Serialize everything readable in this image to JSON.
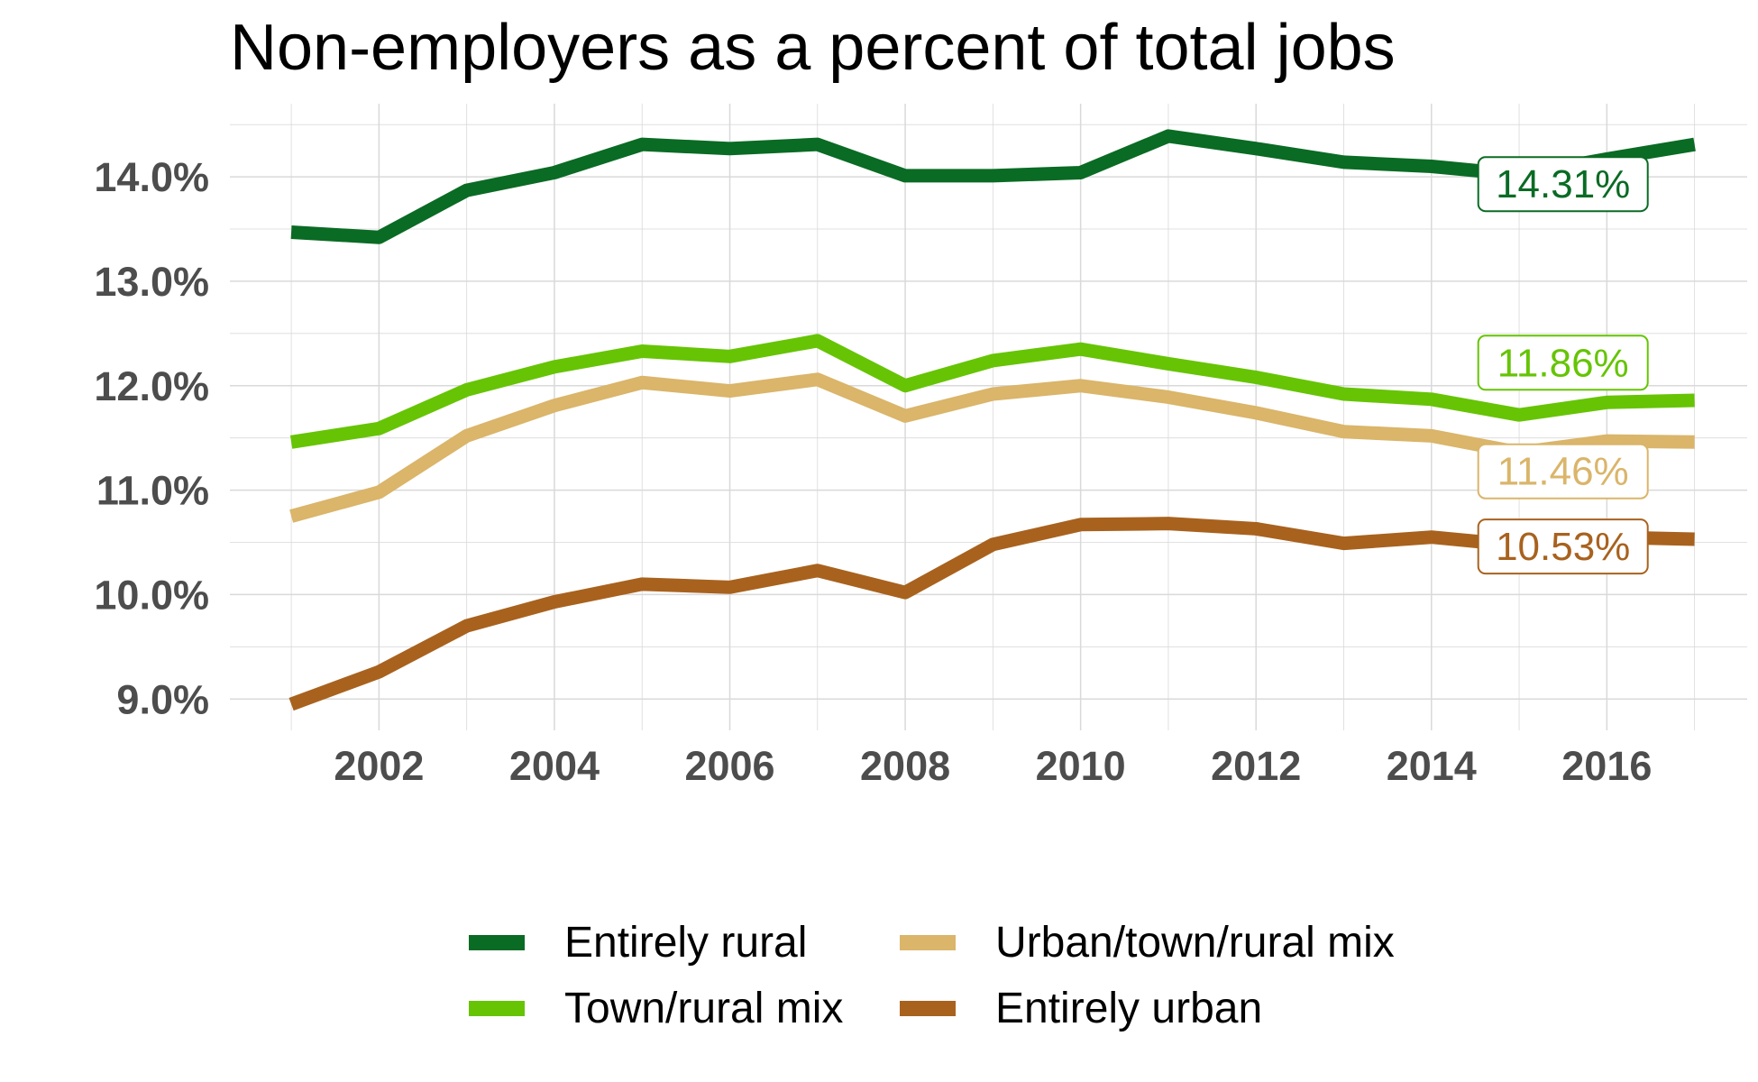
{
  "title": "Non-employers as a percent of total jobs",
  "colors": {
    "entirely_rural": "#0a6b24",
    "town_rural_mix": "#66c404",
    "urban_town_rural_mix": "#dab56a",
    "entirely_urban": "#a8621e",
    "grid": "#d9d9d9",
    "axis_text": "#4d4d4d"
  },
  "legend": {
    "items": [
      {
        "label": "Entirely rural",
        "color": "#0a6b24"
      },
      {
        "label": "Urban/town/rural mix",
        "color": "#dab56a"
      },
      {
        "label": "Town/rural mix",
        "color": "#66c404"
      },
      {
        "label": "Entirely urban",
        "color": "#a8621e"
      }
    ]
  },
  "chart_data": {
    "type": "line",
    "title": "Non-employers as a percent of total jobs",
    "xlabel": "",
    "ylabel": "",
    "x": [
      2001,
      2002,
      2003,
      2004,
      2005,
      2006,
      2007,
      2008,
      2009,
      2010,
      2011,
      2012,
      2013,
      2014,
      2015,
      2016,
      2017
    ],
    "xlim": [
      2000.3,
      2017.6
    ],
    "ylim": [
      8.7,
      14.7
    ],
    "x_ticks": [
      2002,
      2004,
      2006,
      2008,
      2010,
      2012,
      2014,
      2016
    ],
    "x_tick_labels": [
      "2002",
      "2004",
      "2006",
      "2008",
      "2010",
      "2012",
      "2014",
      "2016"
    ],
    "y_ticks": [
      9,
      10,
      11,
      12,
      13,
      14
    ],
    "y_tick_labels": [
      "9.0%",
      "10.0%",
      "11.0%",
      "12.0%",
      "13.0%",
      "14.0%"
    ],
    "grid": true,
    "legend_position": "bottom",
    "series": [
      {
        "name": "Entirely rural",
        "color": "#0a6b24",
        "values": [
          13.47,
          13.42,
          13.87,
          14.04,
          14.31,
          14.27,
          14.31,
          14.01,
          14.01,
          14.04,
          14.39,
          14.27,
          14.14,
          14.1,
          14.02,
          14.17,
          14.31
        ],
        "end_label": "14.31%"
      },
      {
        "name": "Town/rural mix",
        "color": "#66c404",
        "values": [
          11.46,
          11.59,
          11.96,
          12.18,
          12.33,
          12.28,
          12.43,
          12.0,
          12.24,
          12.35,
          12.21,
          12.08,
          11.92,
          11.87,
          11.72,
          11.84,
          11.86
        ],
        "end_label": "11.86%"
      },
      {
        "name": "Urban/town/rural mix",
        "color": "#dab56a",
        "values": [
          10.75,
          10.98,
          11.52,
          11.81,
          12.03,
          11.95,
          12.06,
          11.71,
          11.92,
          12.0,
          11.89,
          11.74,
          11.56,
          11.52,
          11.36,
          11.47,
          11.46
        ],
        "end_label": "11.46%"
      },
      {
        "name": "Entirely urban",
        "color": "#a8621e",
        "values": [
          8.95,
          9.26,
          9.7,
          9.93,
          10.1,
          10.07,
          10.23,
          10.02,
          10.48,
          10.67,
          10.68,
          10.63,
          10.49,
          10.55,
          10.47,
          10.55,
          10.53
        ],
        "end_label": "10.53%"
      }
    ]
  }
}
